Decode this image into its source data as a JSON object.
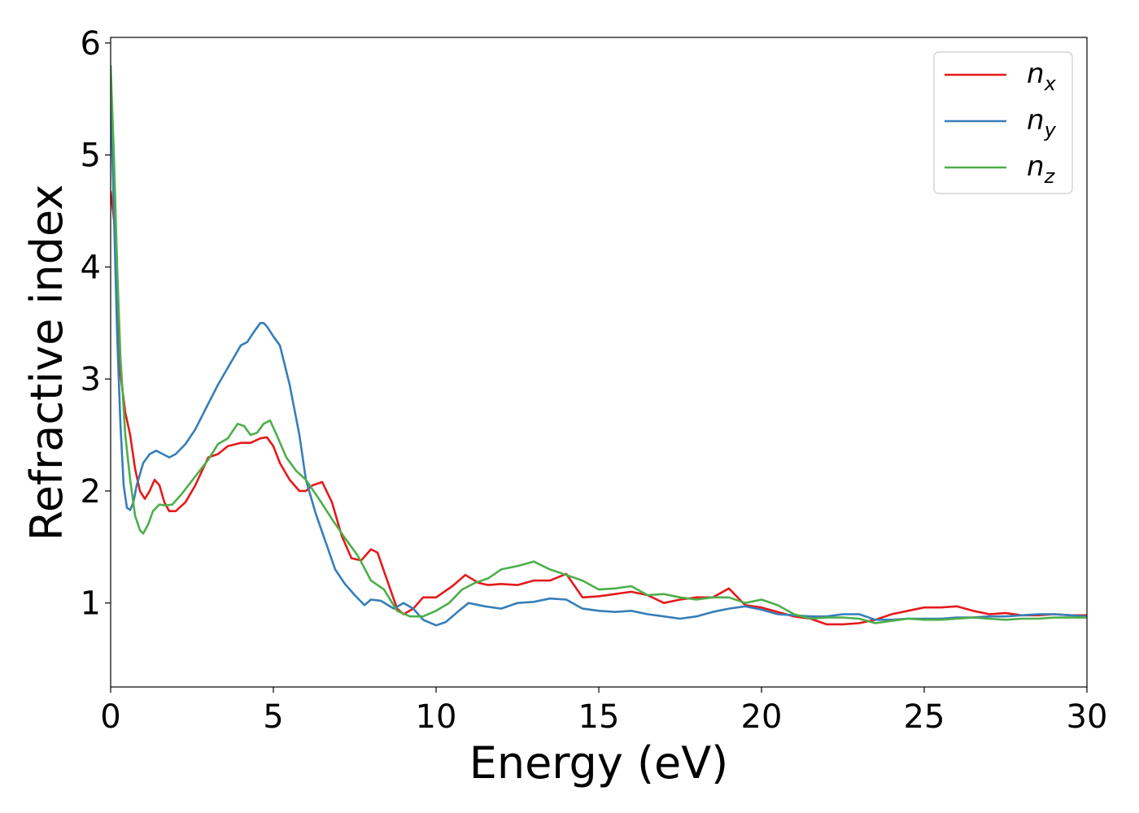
{
  "chart_data": {
    "type": "line",
    "title": "",
    "xlabel": "Energy (eV)",
    "ylabel": "Refractive index",
    "xlim": [
      0,
      30
    ],
    "ylim": [
      0.25,
      6.05
    ],
    "xticks": [
      0,
      5,
      10,
      15,
      20,
      25,
      30
    ],
    "yticks": [
      1,
      2,
      3,
      4,
      5,
      6
    ],
    "grid": false,
    "legend_position": "top-right",
    "series": [
      {
        "name": "n",
        "subscript": "x",
        "color": "#e41a1c",
        "x": [
          0,
          0.15,
          0.3,
          0.45,
          0.6,
          0.75,
          0.9,
          1.05,
          1.2,
          1.35,
          1.5,
          1.65,
          1.8,
          2.0,
          2.3,
          2.6,
          3.0,
          3.3,
          3.6,
          4.0,
          4.3,
          4.6,
          4.8,
          5.0,
          5.2,
          5.5,
          5.8,
          6.0,
          6.2,
          6.5,
          6.8,
          7.1,
          7.4,
          7.7,
          8.0,
          8.2,
          8.5,
          8.8,
          9.0,
          9.3,
          9.6,
          10.0,
          10.5,
          10.9,
          11.3,
          11.6,
          12.0,
          12.5,
          13.0,
          13.5,
          14.0,
          14.5,
          15.0,
          15.5,
          16.0,
          16.5,
          17.0,
          17.5,
          18.0,
          18.5,
          19.0,
          19.5,
          20.0,
          20.5,
          21.0,
          21.5,
          22.0,
          22.5,
          23.0,
          23.5,
          24.0,
          24.5,
          25.0,
          25.5,
          26.0,
          26.5,
          27.0,
          27.5,
          28.0,
          28.5,
          29.0,
          29.5,
          30.0
        ],
        "values": [
          4.68,
          4.3,
          3.05,
          2.7,
          2.5,
          2.2,
          2.0,
          1.93,
          2.0,
          2.1,
          2.05,
          1.9,
          1.82,
          1.82,
          1.9,
          2.05,
          2.3,
          2.33,
          2.4,
          2.43,
          2.43,
          2.47,
          2.48,
          2.4,
          2.25,
          2.1,
          2.0,
          2.0,
          2.05,
          2.08,
          1.9,
          1.6,
          1.4,
          1.38,
          1.48,
          1.45,
          1.2,
          0.95,
          0.9,
          0.95,
          1.05,
          1.05,
          1.15,
          1.25,
          1.18,
          1.16,
          1.17,
          1.16,
          1.2,
          1.2,
          1.26,
          1.05,
          1.06,
          1.08,
          1.1,
          1.07,
          1.0,
          1.03,
          1.05,
          1.05,
          1.13,
          0.98,
          0.96,
          0.92,
          0.88,
          0.86,
          0.81,
          0.81,
          0.82,
          0.85,
          0.9,
          0.93,
          0.96,
          0.96,
          0.97,
          0.93,
          0.9,
          0.91,
          0.89,
          0.89,
          0.9,
          0.89,
          0.89
        ]
      },
      {
        "name": "n",
        "subscript": "y",
        "color": "#377eb8",
        "x": [
          0,
          0.1,
          0.2,
          0.3,
          0.4,
          0.5,
          0.6,
          0.7,
          0.8,
          0.9,
          1.0,
          1.2,
          1.4,
          1.6,
          1.8,
          2.0,
          2.3,
          2.6,
          3.0,
          3.3,
          3.6,
          4.0,
          4.2,
          4.4,
          4.6,
          4.7,
          4.8,
          5.0,
          5.2,
          5.5,
          5.8,
          6.0,
          6.3,
          6.6,
          6.9,
          7.2,
          7.5,
          7.8,
          8.0,
          8.3,
          8.7,
          9.0,
          9.3,
          9.6,
          10.0,
          10.3,
          10.7,
          11.0,
          11.5,
          12.0,
          12.5,
          13.0,
          13.5,
          14.0,
          14.5,
          15.0,
          15.5,
          16.0,
          16.5,
          17.0,
          17.5,
          18.0,
          18.5,
          19.0,
          19.5,
          20.0,
          20.5,
          21.0,
          21.5,
          22.0,
          22.5,
          23.0,
          23.5,
          24.0,
          24.5,
          25.0,
          25.5,
          26.0,
          26.5,
          27.0,
          27.5,
          28.0,
          28.5,
          29.0,
          29.5,
          30.0
        ],
        "values": [
          5.55,
          4.5,
          3.4,
          2.6,
          2.05,
          1.85,
          1.83,
          1.9,
          2.05,
          2.15,
          2.25,
          2.33,
          2.36,
          2.33,
          2.3,
          2.33,
          2.42,
          2.55,
          2.78,
          2.95,
          3.1,
          3.3,
          3.33,
          3.42,
          3.5,
          3.5,
          3.47,
          3.38,
          3.3,
          2.95,
          2.5,
          2.1,
          1.8,
          1.55,
          1.3,
          1.17,
          1.07,
          0.98,
          1.03,
          1.02,
          0.95,
          1.0,
          0.95,
          0.85,
          0.8,
          0.83,
          0.93,
          1.0,
          0.97,
          0.95,
          1.0,
          1.01,
          1.04,
          1.03,
          0.95,
          0.93,
          0.92,
          0.93,
          0.9,
          0.88,
          0.86,
          0.88,
          0.92,
          0.95,
          0.97,
          0.94,
          0.9,
          0.89,
          0.88,
          0.88,
          0.9,
          0.9,
          0.85,
          0.85,
          0.86,
          0.86,
          0.86,
          0.87,
          0.87,
          0.88,
          0.88,
          0.89,
          0.9,
          0.9,
          0.89,
          0.88
        ]
      },
      {
        "name": "n",
        "subscript": "z",
        "color": "#4daf4a",
        "x": [
          0,
          0.1,
          0.2,
          0.3,
          0.45,
          0.6,
          0.75,
          0.9,
          1.0,
          1.15,
          1.3,
          1.5,
          1.7,
          1.9,
          2.2,
          2.6,
          3.0,
          3.3,
          3.6,
          3.9,
          4.1,
          4.3,
          4.5,
          4.7,
          4.9,
          5.1,
          5.4,
          5.7,
          6.0,
          6.4,
          6.8,
          7.2,
          7.6,
          8.0,
          8.4,
          8.8,
          9.2,
          9.6,
          10.0,
          10.4,
          10.8,
          11.2,
          11.6,
          12.0,
          12.5,
          13.0,
          13.5,
          14.0,
          14.5,
          15.0,
          15.5,
          16.0,
          16.5,
          17.0,
          17.5,
          18.0,
          18.5,
          19.0,
          19.5,
          20.0,
          20.5,
          21.0,
          21.5,
          22.0,
          22.5,
          23.0,
          23.5,
          24.0,
          24.5,
          25.0,
          25.5,
          26.0,
          26.5,
          27.0,
          27.5,
          28.0,
          28.5,
          29.0,
          29.5,
          30.0
        ],
        "values": [
          5.8,
          5.0,
          4.0,
          3.2,
          2.5,
          2.1,
          1.78,
          1.65,
          1.62,
          1.7,
          1.82,
          1.88,
          1.87,
          1.88,
          1.98,
          2.13,
          2.28,
          2.42,
          2.47,
          2.6,
          2.58,
          2.5,
          2.52,
          2.6,
          2.63,
          2.5,
          2.3,
          2.18,
          2.1,
          1.93,
          1.75,
          1.58,
          1.42,
          1.2,
          1.12,
          0.93,
          0.88,
          0.88,
          0.93,
          1.0,
          1.12,
          1.18,
          1.22,
          1.3,
          1.33,
          1.37,
          1.3,
          1.25,
          1.2,
          1.12,
          1.13,
          1.15,
          1.07,
          1.08,
          1.05,
          1.03,
          1.05,
          1.05,
          1.0,
          1.03,
          0.98,
          0.9,
          0.86,
          0.87,
          0.87,
          0.86,
          0.82,
          0.84,
          0.86,
          0.85,
          0.85,
          0.86,
          0.87,
          0.86,
          0.85,
          0.86,
          0.86,
          0.87,
          0.87,
          0.87
        ]
      }
    ]
  }
}
